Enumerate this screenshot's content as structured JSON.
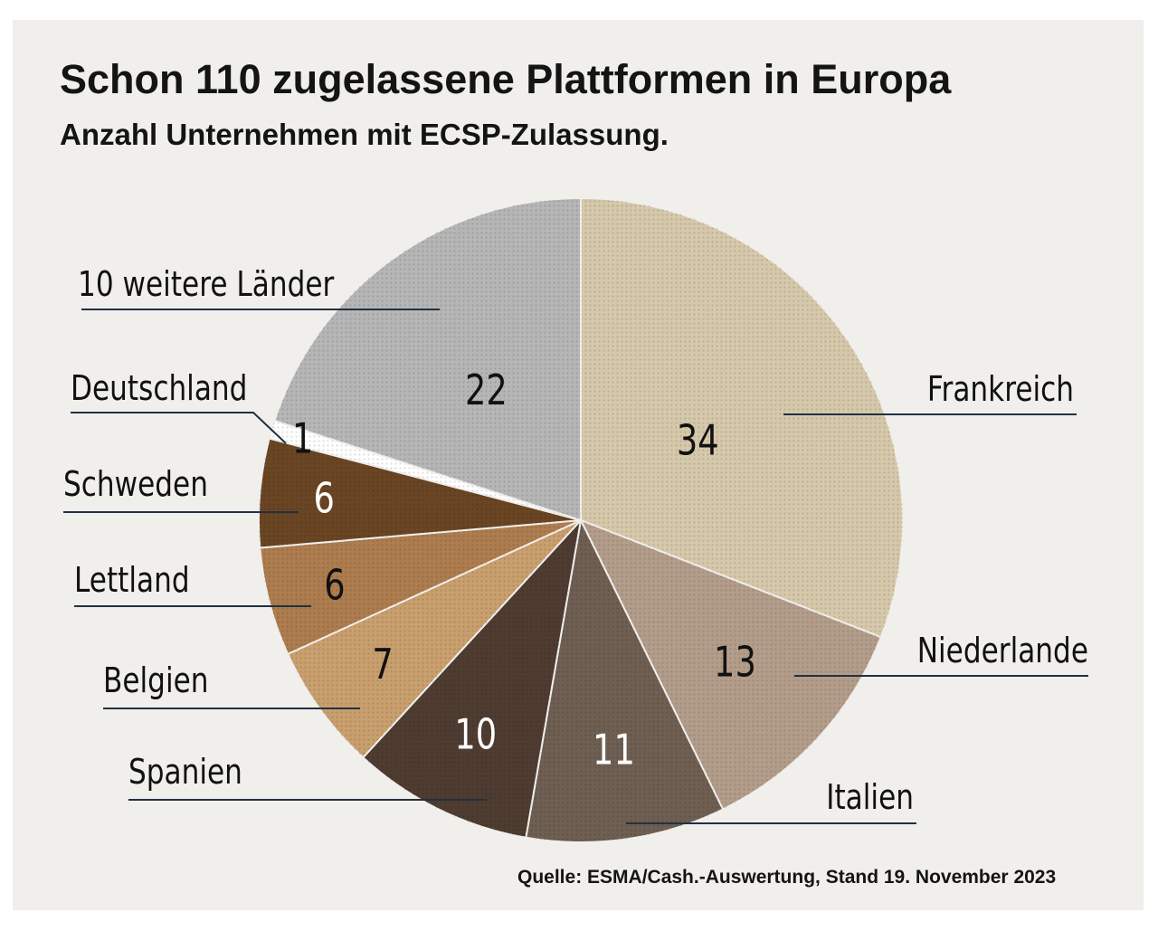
{
  "title": "Schon 110 zugelassene Plattformen in Europa",
  "subtitle": "Anzahl Unternehmen mit ECSP-Zulassung.",
  "source": "Quelle: ESMA/Cash.-Auswertung, Stand 19. November 2023",
  "colors": {
    "background": "#f1efec",
    "text": "#141414",
    "leader_line": "#1f3242"
  },
  "chart_data": {
    "type": "pie",
    "title": "Schon 110 zugelassene Plattformen in Europa",
    "subtitle": "Anzahl Unternehmen mit ECSP-Zulassung.",
    "total": 110,
    "categories": [
      "Frankreich",
      "Niederlande",
      "Italien",
      "Spanien",
      "Belgien",
      "Lettland",
      "Schweden",
      "Deutschland",
      "10 weitere Länder"
    ],
    "values": [
      34,
      13,
      11,
      10,
      7,
      6,
      6,
      1,
      22
    ],
    "colors": [
      "#d6c8aa",
      "#b39d8a",
      "#6e5f52",
      "#4f3c31",
      "#c99f6e",
      "#ad7d4f",
      "#6a4524",
      "#ffffff",
      "#b6b6b6"
    ],
    "value_text_colors": [
      "#111111",
      "#111111",
      "#ffffff",
      "#ffffff",
      "#111111",
      "#111111",
      "#ffffff",
      "#111111",
      "#111111"
    ]
  }
}
